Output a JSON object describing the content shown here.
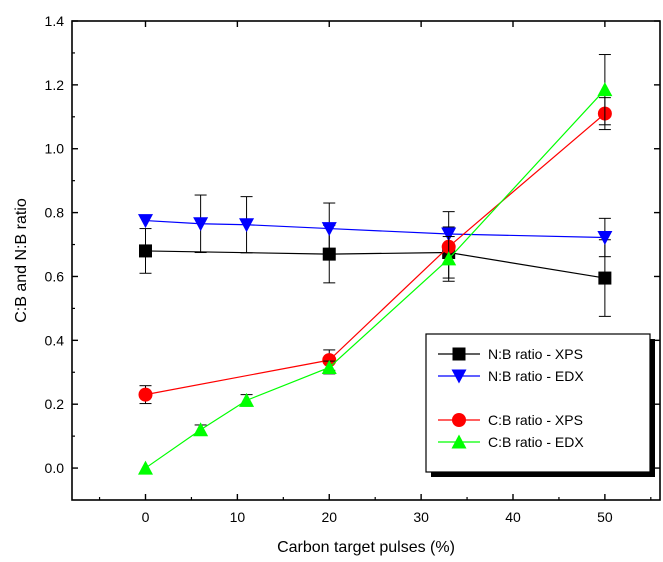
{
  "chart_data": {
    "type": "line",
    "xlabel": "Carbon target pulses (%)",
    "ylabel": "C:B and N:B ratio",
    "xlim": [
      -8,
      56
    ],
    "ylim": [
      -0.1,
      1.4
    ],
    "x_ticks": [
      0,
      10,
      20,
      30,
      40,
      50
    ],
    "y_ticks": [
      0.0,
      0.2,
      0.4,
      0.6,
      0.8,
      1.0,
      1.2,
      1.4
    ],
    "x_tick_labels": [
      "0",
      "10",
      "20",
      "30",
      "40",
      "50"
    ],
    "y_tick_labels": [
      "0.0",
      "0.2",
      "0.4",
      "0.6",
      "0.8",
      "1.0",
      "1.2",
      "1.4"
    ],
    "grid": false,
    "legend_position": "lower-right",
    "series": [
      {
        "name": "N:B ratio - XPS",
        "color": "#000000",
        "marker": "square",
        "x": [
          0,
          20,
          33,
          50
        ],
        "y": [
          0.68,
          0.67,
          0.675,
          0.595
        ],
        "err": [
          0.07,
          0.09,
          0.08,
          0.12
        ]
      },
      {
        "name": "N:B ratio - EDX",
        "color": "#0000ff",
        "marker": "triangle-down",
        "x": [
          0,
          6,
          11,
          20,
          33,
          50
        ],
        "y": [
          0.775,
          0.765,
          0.762,
          0.75,
          0.733,
          0.722
        ],
        "err": [
          0.0,
          0.09,
          0.088,
          0.08,
          0.07,
          0.06
        ]
      },
      {
        "name": "C:B ratio - XPS",
        "color": "#ff0000",
        "marker": "circle",
        "x": [
          0,
          20,
          33,
          50
        ],
        "y": [
          0.23,
          0.338,
          0.693,
          1.11
        ],
        "err": [
          0.028,
          0.032,
          0.0,
          0.05
        ]
      },
      {
        "name": "C:B ratio - EDX",
        "color": "#00ff00",
        "marker": "triangle-up",
        "x": [
          0,
          6,
          11,
          20,
          33,
          50
        ],
        "y": [
          0.0,
          0.12,
          0.212,
          0.315,
          0.655,
          1.185
        ],
        "err": [
          0.0,
          0.015,
          0.018,
          0.02,
          0.07,
          0.11
        ]
      }
    ]
  }
}
